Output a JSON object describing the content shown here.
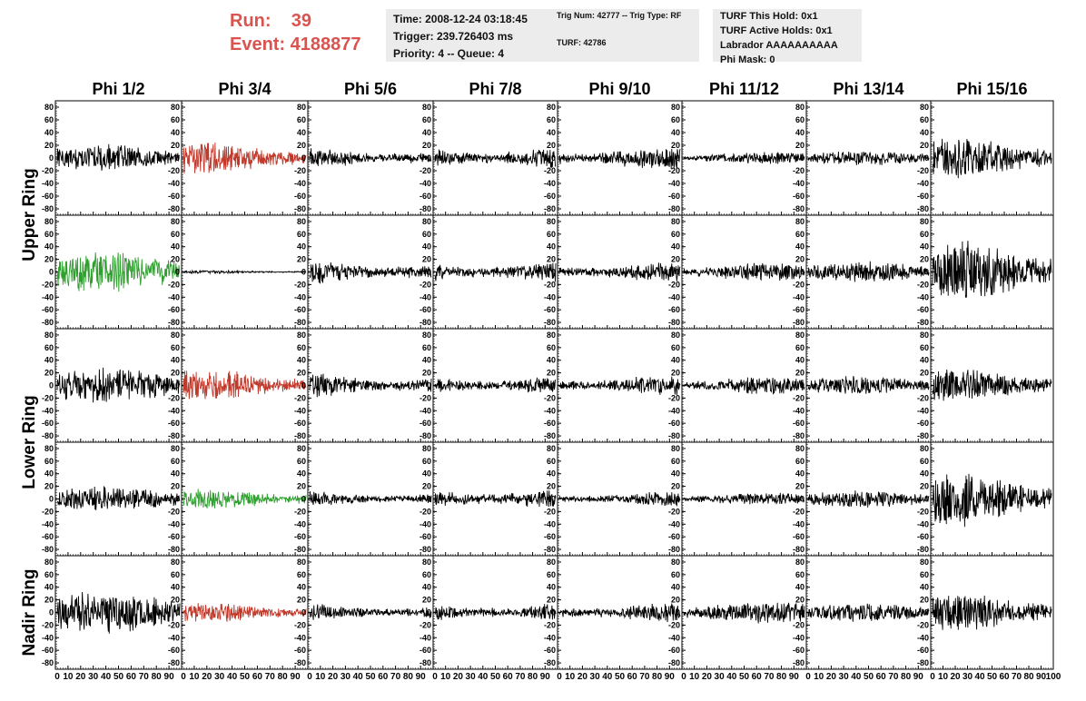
{
  "header": {
    "run_label": "Run:    39",
    "event_label": "Event: 4188877",
    "time": "Time: 2008-12-24 03:18:45",
    "trigger": "Trigger: 239.726403 ms",
    "priority": "Priority: 4 -- Queue: 4",
    "trig_num": "Trig Num: 42777 -- Trig Type: RF",
    "turf": "TURF: 42786",
    "turf_this_hold": "TURF This Hold: 0x1",
    "turf_active_holds": "TURF Active Holds: 0x1",
    "labrador": "Labrador AAAAAAAAAA",
    "phi_mask": "Phi Mask: 0"
  },
  "colors": {
    "normal": "#000000",
    "red": "#c0392b",
    "green": "#2e9e2e",
    "header_red": "#d9534f"
  },
  "chart_data": {
    "type": "line",
    "column_titles": [
      "Phi 1/2",
      "Phi 3/4",
      "Phi 5/6",
      "Phi 7/8",
      "Phi 9/10",
      "Phi 11/12",
      "Phi 13/14",
      "Phi 15/16"
    ],
    "row_groups": [
      {
        "label": "Upper Ring",
        "rows": [
          0,
          1
        ]
      },
      {
        "label": "Lower Ring",
        "rows": [
          2,
          3
        ]
      },
      {
        "label": "Nadir Ring",
        "rows": [
          4
        ]
      }
    ],
    "ylim": [
      -90,
      90
    ],
    "yticks": [
      -80,
      -60,
      -40,
      -20,
      0,
      20,
      40,
      60,
      80
    ],
    "xlim": [
      0,
      100
    ],
    "xticks": [
      0,
      10,
      20,
      30,
      40,
      50,
      60,
      70,
      80,
      90,
      100
    ],
    "last_xtick_label": "100",
    "amplitudes": [
      [
        18,
        22,
        14,
        16,
        16,
        8,
        10,
        28
      ],
      [
        28,
        2,
        17,
        16,
        14,
        12,
        14,
        42
      ],
      [
        24,
        22,
        17,
        14,
        14,
        12,
        13,
        22
      ],
      [
        17,
        14,
        11,
        15,
        10,
        8,
        12,
        36
      ],
      [
        30,
        14,
        12,
        14,
        13,
        15,
        13,
        26
      ]
    ],
    "trace_colors": [
      [
        "normal",
        "red",
        "normal",
        "normal",
        "normal",
        "normal",
        "normal",
        "normal"
      ],
      [
        "green",
        "normal",
        "normal",
        "normal",
        "normal",
        "normal",
        "normal",
        "normal"
      ],
      [
        "normal",
        "red",
        "normal",
        "normal",
        "normal",
        "normal",
        "normal",
        "normal"
      ],
      [
        "normal",
        "green",
        "normal",
        "normal",
        "normal",
        "normal",
        "normal",
        "normal"
      ],
      [
        "normal",
        "red",
        "normal",
        "normal",
        "normal",
        "normal",
        "normal",
        "normal"
      ]
    ]
  }
}
